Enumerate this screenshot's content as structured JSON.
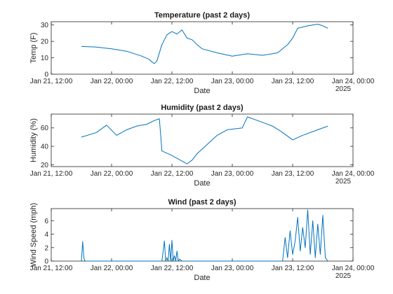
{
  "chart_data": [
    {
      "type": "line",
      "title": "Temperature (past 2 days)",
      "xlabel": "Date",
      "ylabel": "Temp (F)",
      "xlim": [
        "2025-01-21T12:00",
        "2025-01-24T00:00"
      ],
      "ylim": [
        0,
        32
      ],
      "x_tick_labels": [
        "Jan 21, 12:00",
        "Jan 22, 00:00",
        "Jan 22, 12:00",
        "Jan 23, 00:00",
        "Jan 23, 12:00",
        "Jan 24, 00:00"
      ],
      "x_secondary_label": "2025",
      "y_ticks": [
        0,
        10,
        20,
        30
      ],
      "color": "#0072BD",
      "x": [
        "2025-01-21T18:00",
        "2025-01-21T21:00",
        "2025-01-22T00:00",
        "2025-01-22T03:00",
        "2025-01-22T06:00",
        "2025-01-22T07:30",
        "2025-01-22T08:00",
        "2025-01-22T08:30",
        "2025-01-22T09:00",
        "2025-01-22T10:00",
        "2025-01-22T11:00",
        "2025-01-22T12:00",
        "2025-01-22T13:00",
        "2025-01-22T14:00",
        "2025-01-22T15:00",
        "2025-01-22T16:00",
        "2025-01-22T17:00",
        "2025-01-22T18:00",
        "2025-01-22T21:00",
        "2025-01-23T00:00",
        "2025-01-23T03:00",
        "2025-01-23T06:00",
        "2025-01-23T09:00",
        "2025-01-23T11:00",
        "2025-01-23T12:00",
        "2025-01-23T13:00",
        "2025-01-23T15:00",
        "2025-01-23T17:00",
        "2025-01-23T18:00",
        "2025-01-23T19:00"
      ],
      "y": [
        17,
        16.5,
        15.5,
        14,
        11,
        9,
        7.5,
        6.5,
        8,
        18,
        24,
        26,
        24.5,
        27,
        22,
        21,
        18,
        15.5,
        13,
        11,
        12.5,
        11.5,
        13,
        18,
        22,
        28,
        29.5,
        30.5,
        29.5,
        28
      ]
    },
    {
      "type": "line",
      "title": "Humidity (past 2 days)",
      "xlabel": "Date",
      "ylabel": "Humidity (%)",
      "xlim": [
        "2025-01-21T12:00",
        "2025-01-24T00:00"
      ],
      "ylim": [
        18,
        75
      ],
      "x_tick_labels": [
        "Jan 21, 12:00",
        "Jan 22, 00:00",
        "Jan 22, 12:00",
        "Jan 23, 00:00",
        "Jan 23, 12:00",
        "Jan 24, 00:00"
      ],
      "x_secondary_label": "2025",
      "y_ticks": [
        20,
        40,
        60
      ],
      "color": "#0072BD",
      "x": [
        "2025-01-21T18:00",
        "2025-01-21T21:00",
        "2025-01-21T23:00",
        "2025-01-22T01:00",
        "2025-01-22T03:00",
        "2025-01-22T05:00",
        "2025-01-22T07:00",
        "2025-01-22T08:30",
        "2025-01-22T09:30",
        "2025-01-22T10:00",
        "2025-01-22T12:00",
        "2025-01-22T14:00",
        "2025-01-22T15:00",
        "2025-01-22T16:00",
        "2025-01-22T17:00",
        "2025-01-22T19:00",
        "2025-01-22T21:00",
        "2025-01-22T23:00",
        "2025-01-23T02:00",
        "2025-01-23T03:00",
        "2025-01-23T06:00",
        "2025-01-23T08:00",
        "2025-01-23T10:00",
        "2025-01-23T12:00",
        "2025-01-23T14:00",
        "2025-01-23T17:00",
        "2025-01-23T19:00"
      ],
      "y": [
        50,
        55,
        63,
        52,
        58,
        62,
        64,
        68,
        70,
        35,
        30,
        24,
        21,
        25,
        32,
        42,
        52,
        58,
        60,
        72,
        66,
        62,
        55,
        47,
        52,
        58,
        62
      ]
    },
    {
      "type": "line",
      "title": "Wind (past 2 days)",
      "xlabel": "Date",
      "ylabel": "Wind Speed (mph)",
      "xlim": [
        "2025-01-21T12:00",
        "2025-01-24T00:00"
      ],
      "ylim": [
        0,
        7.8
      ],
      "x_tick_labels": [
        "Jan 21, 12:00",
        "Jan 22, 00:00",
        "Jan 22, 12:00",
        "Jan 23, 00:00",
        "Jan 23, 12:00",
        "Jan 24, 00:00"
      ],
      "x_secondary_label": "2025",
      "y_ticks": [
        0,
        2,
        4,
        6
      ],
      "color": "#0072BD",
      "x": [
        "2025-01-21T18:00",
        "2025-01-21T18:15",
        "2025-01-21T18:30",
        "2025-01-21T18:45",
        "2025-01-22T00:00",
        "2025-01-22T06:00",
        "2025-01-22T10:00",
        "2025-01-22T10:30",
        "2025-01-22T10:45",
        "2025-01-22T11:00",
        "2025-01-22T11:15",
        "2025-01-22T11:30",
        "2025-01-22T11:45",
        "2025-01-22T12:00",
        "2025-01-22T12:15",
        "2025-01-22T12:30",
        "2025-01-22T12:45",
        "2025-01-22T13:00",
        "2025-01-22T13:15",
        "2025-01-22T13:30",
        "2025-01-22T14:00",
        "2025-01-22T18:00",
        "2025-01-23T00:00",
        "2025-01-23T06:00",
        "2025-01-23T10:00",
        "2025-01-23T10:30",
        "2025-01-23T11:00",
        "2025-01-23T11:30",
        "2025-01-23T12:00",
        "2025-01-23T12:30",
        "2025-01-23T13:00",
        "2025-01-23T13:30",
        "2025-01-23T14:00",
        "2025-01-23T14:30",
        "2025-01-23T15:00",
        "2025-01-23T15:30",
        "2025-01-23T16:00",
        "2025-01-23T16:30",
        "2025-01-23T17:00",
        "2025-01-23T17:30",
        "2025-01-23T18:00",
        "2025-01-23T18:30",
        "2025-01-23T19:00"
      ],
      "y": [
        0,
        2.9,
        0.4,
        0,
        0,
        0,
        0,
        3.0,
        0,
        0.5,
        0,
        2.5,
        0,
        3.1,
        0,
        0.8,
        0,
        1.5,
        0,
        0.3,
        0,
        0,
        0,
        0,
        0,
        3.5,
        0.5,
        4.5,
        1,
        3,
        6.5,
        1.5,
        5,
        2,
        7.6,
        1,
        6,
        0.5,
        5.5,
        1,
        6.8,
        0.5,
        0
      ]
    }
  ]
}
